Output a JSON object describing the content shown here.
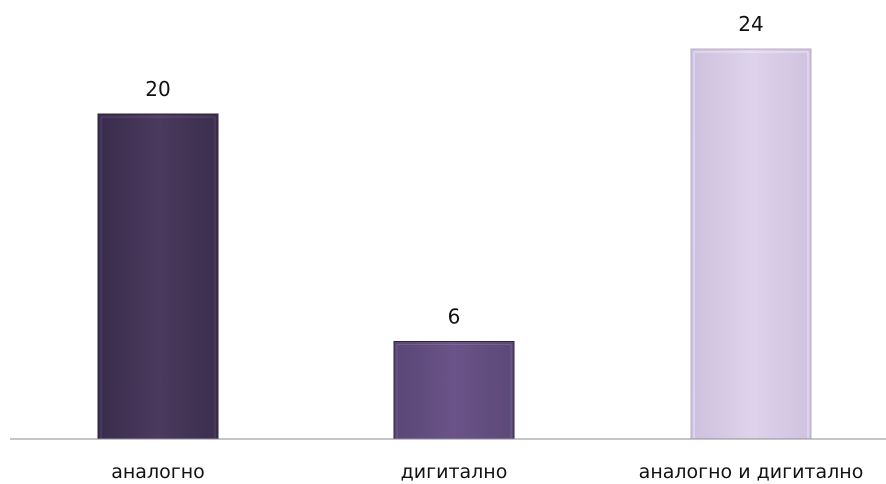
{
  "chart_data": {
    "type": "bar",
    "categories": [
      "аналогно",
      "дигитално",
      "аналогно и дигитално"
    ],
    "values": [
      20,
      6,
      24
    ],
    "title": "",
    "xlabel": "",
    "ylabel": "",
    "ylim": [
      0,
      24
    ],
    "grid": false,
    "legend": "none",
    "colors": [
      "#4a3a5e",
      "#6a5388",
      "#d8cde6"
    ]
  }
}
